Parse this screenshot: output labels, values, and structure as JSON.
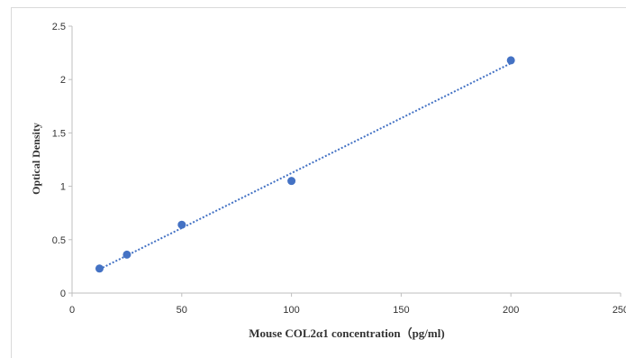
{
  "chart_data": {
    "type": "scatter",
    "title": "",
    "xlabel": "Mouse  COL2α1 concentration（pg/ml)",
    "ylabel": "Optical Density",
    "xlim": [
      0,
      250
    ],
    "ylim": [
      0,
      2.5
    ],
    "x_ticks": [
      "0",
      "50",
      "100",
      "150",
      "200",
      "250"
    ],
    "y_ticks": [
      "0",
      "0.5",
      "1",
      "1.5",
      "2",
      "2.5"
    ],
    "grid": false,
    "legend": "none",
    "trendline": "linear, dotted",
    "point_color": "#4472c4",
    "series": [
      {
        "x": [
          12.5,
          25,
          50,
          100,
          200
        ],
        "y": [
          0.23,
          0.36,
          0.64,
          1.05,
          2.18
        ]
      }
    ]
  }
}
